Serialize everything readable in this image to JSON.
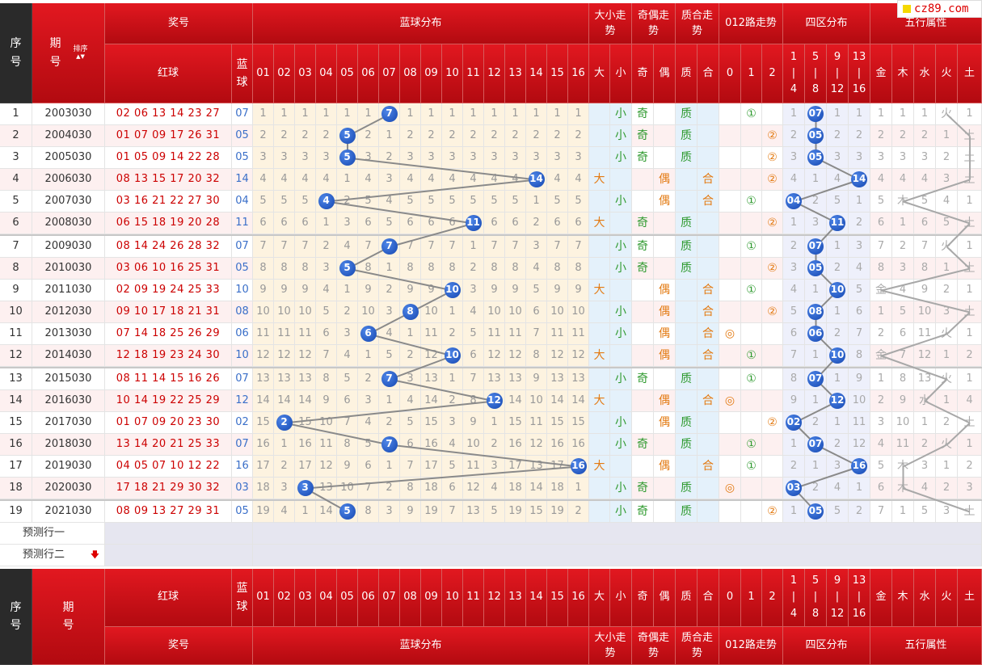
{
  "site_logo": "cz89.com",
  "headers": {
    "seq": "序号",
    "period": "期号",
    "sort": "排序",
    "draw": "奖号",
    "red": "红球",
    "blue": "蓝球",
    "blue_dist": "蓝球分布",
    "big_small": "大小走势",
    "odd_even": "奇偶走势",
    "prime_comp": "质合走势",
    "route012": "012路走势",
    "zone": "四区分布",
    "elements": "五行属性",
    "bs_cols": [
      "大",
      "小"
    ],
    "oe_cols": [
      "奇",
      "偶"
    ],
    "pc_cols": [
      "质",
      "合"
    ],
    "r_cols": [
      "0",
      "1",
      "2"
    ],
    "zone_cols": [
      [
        "1",
        "|",
        "4"
      ],
      [
        "5",
        "|",
        "8"
      ],
      [
        "9",
        "|",
        "12"
      ],
      [
        "13",
        "|",
        "16"
      ]
    ],
    "el_cols": [
      "金",
      "木",
      "水",
      "火",
      "土"
    ],
    "blue_cols": [
      "01",
      "02",
      "03",
      "04",
      "05",
      "06",
      "07",
      "08",
      "09",
      "10",
      "11",
      "12",
      "13",
      "14",
      "15",
      "16"
    ]
  },
  "rows": [
    {
      "seq": "1",
      "period": "2003030",
      "reds": "02 06 13 14 23 27",
      "blue": "07",
      "dist": [
        "1",
        "1",
        "1",
        "1",
        "1",
        "1",
        "",
        "1",
        "1",
        "1",
        "1",
        "1",
        "1",
        "1",
        "1",
        "1"
      ],
      "bs": [
        "",
        "小"
      ],
      "oe": [
        "奇",
        ""
      ],
      "pc": [
        "质",
        ""
      ],
      "route": [
        "",
        "①",
        ""
      ],
      "zone": [
        "1",
        "",
        "1",
        "1"
      ],
      "el": [
        "1",
        "1",
        "1",
        "火",
        "1"
      ]
    },
    {
      "seq": "2",
      "period": "2004030",
      "reds": "01 07 09 17 26 31",
      "blue": "05",
      "dist": [
        "2",
        "2",
        "2",
        "2",
        "",
        "2",
        "1",
        "2",
        "2",
        "2",
        "2",
        "2",
        "2",
        "2",
        "2",
        "2"
      ],
      "bs": [
        "",
        "小"
      ],
      "oe": [
        "奇",
        ""
      ],
      "pc": [
        "质",
        ""
      ],
      "route": [
        "",
        "",
        "②"
      ],
      "zone": [
        "2",
        "",
        "2",
        "2"
      ],
      "el": [
        "2",
        "2",
        "2",
        "1",
        "土"
      ]
    },
    {
      "seq": "3",
      "period": "2005030",
      "reds": "01 05 09 14 22 28",
      "blue": "05",
      "dist": [
        "3",
        "3",
        "3",
        "3",
        "",
        "3",
        "2",
        "3",
        "3",
        "3",
        "3",
        "3",
        "3",
        "3",
        "3",
        "3"
      ],
      "bs": [
        "",
        "小"
      ],
      "oe": [
        "奇",
        ""
      ],
      "pc": [
        "质",
        ""
      ],
      "route": [
        "",
        "",
        "②"
      ],
      "zone": [
        "3",
        "",
        "3",
        "3"
      ],
      "el": [
        "3",
        "3",
        "3",
        "2",
        "土"
      ]
    },
    {
      "seq": "4",
      "period": "2006030",
      "reds": "08 13 15 17 20 32",
      "blue": "14",
      "dist": [
        "4",
        "4",
        "4",
        "4",
        "1",
        "4",
        "3",
        "4",
        "4",
        "4",
        "4",
        "4",
        "4",
        "",
        "4",
        "4"
      ],
      "bs": [
        "大",
        ""
      ],
      "oe": [
        "",
        "偶"
      ],
      "pc": [
        "",
        "合"
      ],
      "route": [
        "",
        "",
        "②"
      ],
      "zone": [
        "4",
        "1",
        "4",
        ""
      ],
      "el": [
        "4",
        "4",
        "4",
        "3",
        "土"
      ]
    },
    {
      "seq": "5",
      "period": "2007030",
      "reds": "03 16 21 22 27 30",
      "blue": "04",
      "dist": [
        "5",
        "5",
        "5",
        "",
        "2",
        "5",
        "4",
        "5",
        "5",
        "5",
        "5",
        "5",
        "5",
        "1",
        "5",
        "5"
      ],
      "bs": [
        "",
        "小"
      ],
      "oe": [
        "",
        "偶"
      ],
      "pc": [
        "",
        "合"
      ],
      "route": [
        "",
        "①",
        ""
      ],
      "zone": [
        "",
        "2",
        "5",
        "1"
      ],
      "el": [
        "5",
        "木",
        "5",
        "4",
        "1"
      ]
    },
    {
      "seq": "6",
      "period": "2008030",
      "reds": "06 15 18 19 20 28",
      "blue": "11",
      "dist": [
        "6",
        "6",
        "6",
        "1",
        "3",
        "6",
        "5",
        "6",
        "6",
        "6",
        "",
        "6",
        "6",
        "2",
        "6",
        "6"
      ],
      "bs": [
        "大",
        ""
      ],
      "oe": [
        "奇",
        ""
      ],
      "pc": [
        "质",
        ""
      ],
      "route": [
        "",
        "",
        "②"
      ],
      "zone": [
        "1",
        "3",
        "",
        "2"
      ],
      "el": [
        "6",
        "1",
        "6",
        "5",
        "土"
      ]
    },
    {
      "seq": "7",
      "period": "2009030",
      "reds": "08 14 24 26 28 32",
      "blue": "07",
      "dist": [
        "7",
        "7",
        "7",
        "2",
        "4",
        "7",
        "",
        "7",
        "7",
        "7",
        "1",
        "7",
        "7",
        "3",
        "7",
        "7"
      ],
      "bs": [
        "",
        "小"
      ],
      "oe": [
        "奇",
        ""
      ],
      "pc": [
        "质",
        ""
      ],
      "route": [
        "",
        "①",
        ""
      ],
      "zone": [
        "2",
        "",
        "1",
        "3"
      ],
      "el": [
        "7",
        "2",
        "7",
        "火",
        "1"
      ]
    },
    {
      "seq": "8",
      "period": "2010030",
      "reds": "03 06 10 16 25 31",
      "blue": "05",
      "dist": [
        "8",
        "8",
        "8",
        "3",
        "",
        "8",
        "1",
        "8",
        "8",
        "8",
        "2",
        "8",
        "8",
        "4",
        "8",
        "8"
      ],
      "bs": [
        "",
        "小"
      ],
      "oe": [
        "奇",
        ""
      ],
      "pc": [
        "质",
        ""
      ],
      "route": [
        "",
        "",
        "②"
      ],
      "zone": [
        "3",
        "",
        "2",
        "4"
      ],
      "el": [
        "8",
        "3",
        "8",
        "1",
        "土"
      ]
    },
    {
      "seq": "9",
      "period": "2011030",
      "reds": "02 09 19 24 25 33",
      "blue": "10",
      "dist": [
        "9",
        "9",
        "9",
        "4",
        "1",
        "9",
        "2",
        "9",
        "9",
        "",
        "3",
        "9",
        "9",
        "5",
        "9",
        "9"
      ],
      "bs": [
        "大",
        ""
      ],
      "oe": [
        "",
        "偶"
      ],
      "pc": [
        "",
        "合"
      ],
      "route": [
        "",
        "①",
        ""
      ],
      "zone": [
        "4",
        "1",
        "",
        "5"
      ],
      "el": [
        "金",
        "4",
        "9",
        "2",
        "1"
      ]
    },
    {
      "seq": "10",
      "period": "2012030",
      "reds": "09 10 17 18 21 31",
      "blue": "08",
      "dist": [
        "10",
        "10",
        "10",
        "5",
        "2",
        "10",
        "3",
        "",
        "10",
        "1",
        "4",
        "10",
        "10",
        "6",
        "10",
        "10"
      ],
      "bs": [
        "",
        "小"
      ],
      "oe": [
        "",
        "偶"
      ],
      "pc": [
        "",
        "合"
      ],
      "route": [
        "",
        "",
        "②"
      ],
      "zone": [
        "5",
        "",
        "1",
        "6"
      ],
      "el": [
        "1",
        "5",
        "10",
        "3",
        "土"
      ]
    },
    {
      "seq": "11",
      "period": "2013030",
      "reds": "07 14 18 25 26 29",
      "blue": "06",
      "dist": [
        "11",
        "11",
        "11",
        "6",
        "3",
        "",
        "4",
        "1",
        "11",
        "2",
        "5",
        "11",
        "11",
        "7",
        "11",
        "11"
      ],
      "bs": [
        "",
        "小"
      ],
      "oe": [
        "",
        "偶"
      ],
      "pc": [
        "",
        "合"
      ],
      "route": [
        "◎",
        "",
        ""
      ],
      "zone": [
        "6",
        "",
        "2",
        "7"
      ],
      "el": [
        "2",
        "6",
        "11",
        "火",
        "1"
      ]
    },
    {
      "seq": "12",
      "period": "2014030",
      "reds": "12 18 19 23 24 30",
      "blue": "10",
      "dist": [
        "12",
        "12",
        "12",
        "7",
        "4",
        "1",
        "5",
        "2",
        "12",
        "",
        "6",
        "12",
        "12",
        "8",
        "12",
        "12"
      ],
      "bs": [
        "大",
        ""
      ],
      "oe": [
        "",
        "偶"
      ],
      "pc": [
        "",
        "合"
      ],
      "route": [
        "",
        "①",
        ""
      ],
      "zone": [
        "7",
        "1",
        "",
        "8"
      ],
      "el": [
        "金",
        "7",
        "12",
        "1",
        "2"
      ]
    },
    {
      "seq": "13",
      "period": "2015030",
      "reds": "08 11 14 15 16 26",
      "blue": "07",
      "dist": [
        "13",
        "13",
        "13",
        "8",
        "5",
        "2",
        "",
        "3",
        "13",
        "1",
        "7",
        "13",
        "13",
        "9",
        "13",
        "13"
      ],
      "bs": [
        "",
        "小"
      ],
      "oe": [
        "奇",
        ""
      ],
      "pc": [
        "质",
        ""
      ],
      "route": [
        "",
        "①",
        ""
      ],
      "zone": [
        "8",
        "",
        "1",
        "9"
      ],
      "el": [
        "1",
        "8",
        "13",
        "火",
        "1"
      ]
    },
    {
      "seq": "14",
      "period": "2016030",
      "reds": "10 14 19 22 25 29",
      "blue": "12",
      "dist": [
        "14",
        "14",
        "14",
        "9",
        "6",
        "3",
        "1",
        "4",
        "14",
        "2",
        "8",
        "",
        "14",
        "10",
        "14",
        "14"
      ],
      "bs": [
        "大",
        ""
      ],
      "oe": [
        "",
        "偶"
      ],
      "pc": [
        "",
        "合"
      ],
      "route": [
        "◎",
        "",
        ""
      ],
      "zone": [
        "9",
        "1",
        "",
        "10"
      ],
      "el": [
        "2",
        "9",
        "水",
        "1",
        "4"
      ]
    },
    {
      "seq": "15",
      "period": "2017030",
      "reds": "01 07 09 20 23 30",
      "blue": "02",
      "dist": [
        "15",
        "",
        "15",
        "10",
        "7",
        "4",
        "2",
        "5",
        "15",
        "3",
        "9",
        "1",
        "15",
        "11",
        "15",
        "15"
      ],
      "bs": [
        "",
        "小"
      ],
      "oe": [
        "",
        "偶"
      ],
      "pc": [
        "质",
        ""
      ],
      "route": [
        "",
        "",
        "②"
      ],
      "zone": [
        "",
        "2",
        "1",
        "11"
      ],
      "el": [
        "3",
        "10",
        "1",
        "2",
        "土"
      ]
    },
    {
      "seq": "16",
      "period": "2018030",
      "reds": "13 14 20 21 25 33",
      "blue": "07",
      "dist": [
        "16",
        "1",
        "16",
        "11",
        "8",
        "5",
        "",
        "6",
        "16",
        "4",
        "10",
        "2",
        "16",
        "12",
        "16",
        "16"
      ],
      "bs": [
        "",
        "小"
      ],
      "oe": [
        "奇",
        ""
      ],
      "pc": [
        "质",
        ""
      ],
      "route": [
        "",
        "①",
        ""
      ],
      "zone": [
        "1",
        "",
        "2",
        "12"
      ],
      "el": [
        "4",
        "11",
        "2",
        "火",
        "1"
      ]
    },
    {
      "seq": "17",
      "period": "2019030",
      "reds": "04 05 07 10 12 22",
      "blue": "16",
      "dist": [
        "17",
        "2",
        "17",
        "12",
        "9",
        "6",
        "1",
        "7",
        "17",
        "5",
        "11",
        "3",
        "17",
        "13",
        "17",
        ""
      ],
      "bs": [
        "大",
        ""
      ],
      "oe": [
        "",
        "偶"
      ],
      "pc": [
        "",
        "合"
      ],
      "route": [
        "",
        "①",
        ""
      ],
      "zone": [
        "2",
        "1",
        "3",
        ""
      ],
      "el": [
        "5",
        "木",
        "3",
        "1",
        "2"
      ]
    },
    {
      "seq": "18",
      "period": "2020030",
      "reds": "17 18 21 29 30 32",
      "blue": "03",
      "dist": [
        "18",
        "3",
        "",
        "13",
        "10",
        "7",
        "2",
        "8",
        "18",
        "6",
        "12",
        "4",
        "18",
        "14",
        "18",
        "1"
      ],
      "bs": [
        "",
        "小"
      ],
      "oe": [
        "奇",
        ""
      ],
      "pc": [
        "质",
        ""
      ],
      "route": [
        "◎",
        "",
        ""
      ],
      "zone": [
        "",
        "2",
        "4",
        "1"
      ],
      "el": [
        "6",
        "木",
        "4",
        "2",
        "3"
      ]
    },
    {
      "seq": "19",
      "period": "2021030",
      "reds": "08 09 13 27 29 31",
      "blue": "05",
      "dist": [
        "19",
        "4",
        "1",
        "14",
        "",
        "8",
        "3",
        "9",
        "19",
        "7",
        "13",
        "5",
        "19",
        "15",
        "19",
        "2"
      ],
      "bs": [
        "",
        "小"
      ],
      "oe": [
        "奇",
        ""
      ],
      "pc": [
        "质",
        ""
      ],
      "route": [
        "",
        "",
        "②"
      ],
      "zone": [
        "1",
        "",
        "5",
        "2"
      ],
      "el": [
        "7",
        "1",
        "5",
        "3",
        "土"
      ]
    }
  ],
  "predict_rows": [
    "预测行一",
    "预测行二"
  ]
}
